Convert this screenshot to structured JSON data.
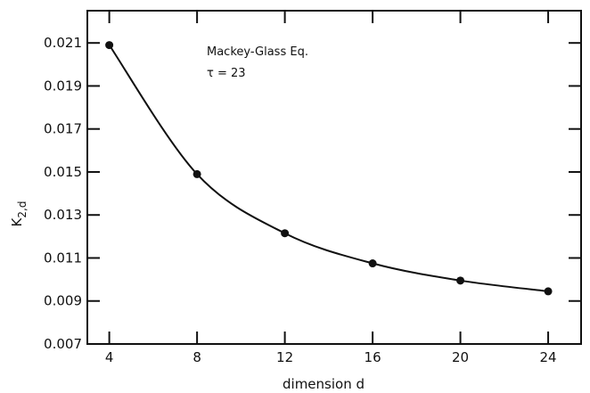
{
  "chart_data": {
    "type": "line",
    "title": "",
    "xlabel": "dimension  d",
    "ylabel_main": "K",
    "ylabel_sub": "2,d",
    "xlim": [
      3,
      25.5
    ],
    "ylim": [
      0.007,
      0.0225
    ],
    "xticks": [
      4,
      8,
      12,
      16,
      20,
      24
    ],
    "xtick_labels": [
      "4",
      "8",
      "12",
      "16",
      "20",
      "24"
    ],
    "yticks": [
      0.007,
      0.009,
      0.011,
      0.013,
      0.015,
      0.017,
      0.019,
      0.021
    ],
    "ytick_labels": [
      "0.007",
      "0.009",
      "0.011",
      "0.013",
      "0.015",
      "0.017",
      "0.019",
      "0.021"
    ],
    "grid": false,
    "legend": "none",
    "series": [
      {
        "x": [
          4,
          8,
          12,
          16,
          20,
          24
        ],
        "values": [
          0.0209,
          0.0149,
          0.01215,
          0.01075,
          0.00995,
          0.00945
        ],
        "style": "smooth line with dot markers",
        "color": "#111111"
      }
    ],
    "annotations": [
      "Mackey-Glass Eq.",
      "τ = 23"
    ]
  }
}
